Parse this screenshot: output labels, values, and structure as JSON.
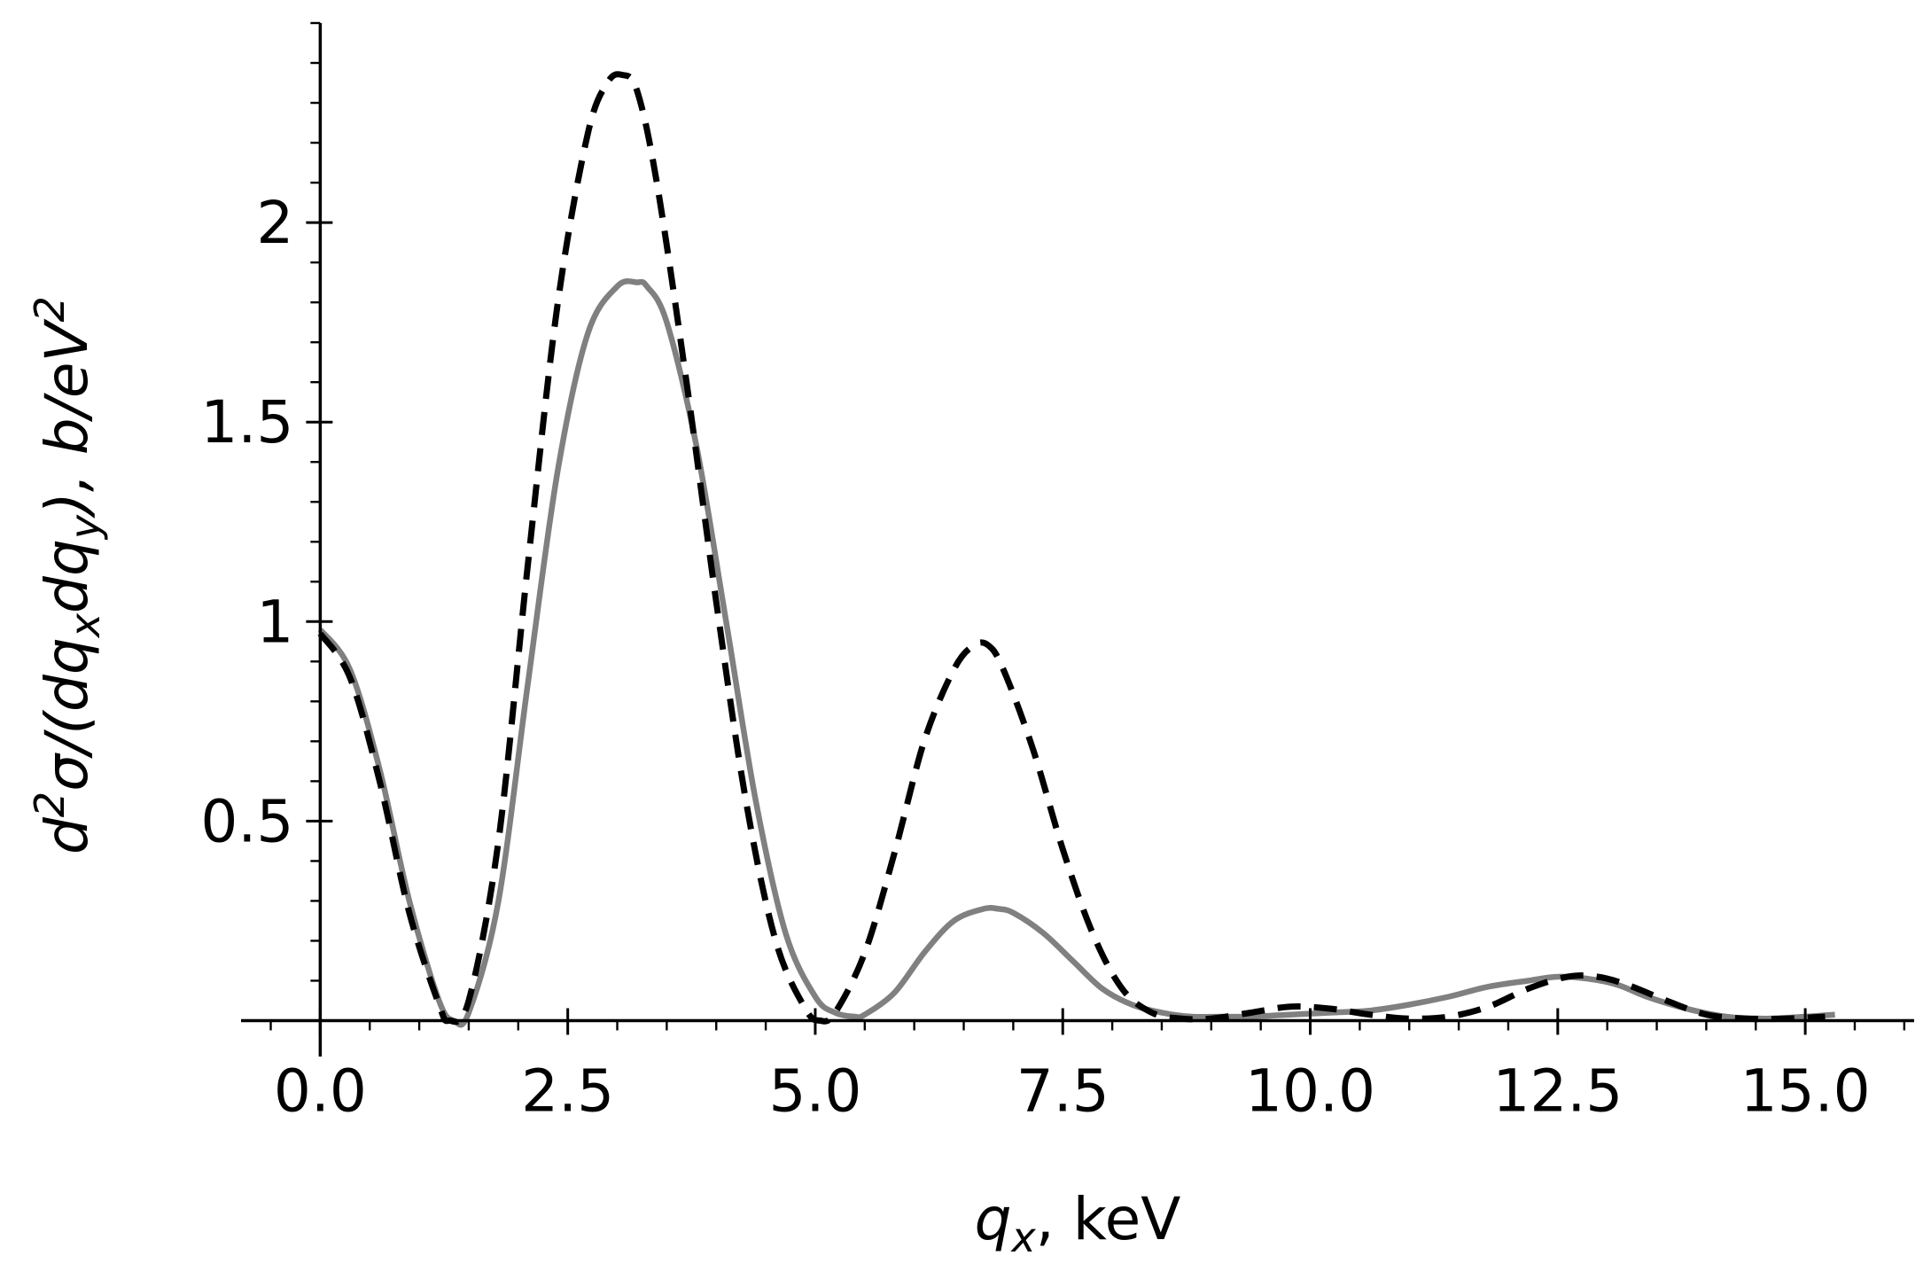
{
  "chart_data": {
    "type": "line",
    "title": "",
    "xlabel": {
      "base": "q",
      "sub": "x",
      "suffix": ", keV"
    },
    "ylabel": {
      "parts": [
        "d",
        "2",
        "σ/(dq",
        "x",
        "dq",
        "y",
        "),  b/eV",
        "2"
      ]
    },
    "xlim": [
      -0.8,
      16.1
    ],
    "ylim": [
      -0.09,
      2.5
    ],
    "x_ticks": [
      {
        "value": 0.0,
        "label": "0.0"
      },
      {
        "value": 2.5,
        "label": "2.5"
      },
      {
        "value": 5.0,
        "label": "5.0"
      },
      {
        "value": 7.5,
        "label": "7.5"
      },
      {
        "value": 10.0,
        "label": "10.0"
      },
      {
        "value": 12.5,
        "label": "12.5"
      },
      {
        "value": 15.0,
        "label": "15.0"
      }
    ],
    "y_ticks": [
      {
        "value": 0.5,
        "label": "0.5"
      },
      {
        "value": 1.0,
        "label": "1"
      },
      {
        "value": 1.5,
        "label": "1.5"
      },
      {
        "value": 2.0,
        "label": "2"
      }
    ],
    "x_minor_step": 0.5,
    "y_minor_step": 0.1,
    "grid": false,
    "legend": "none",
    "series": [
      {
        "style": "solid",
        "color": "#808080",
        "x": [
          0.0,
          0.3,
          0.6,
          0.9,
          1.2,
          1.35,
          1.5,
          1.8,
          2.1,
          2.4,
          2.7,
          3.0,
          3.2,
          3.3,
          3.5,
          3.8,
          4.1,
          4.4,
          4.7,
          5.0,
          5.2,
          5.4,
          5.5,
          5.8,
          6.1,
          6.4,
          6.7,
          6.85,
          7.0,
          7.3,
          7.6,
          7.9,
          8.2,
          8.5,
          8.8,
          9.1,
          9.4,
          9.8,
          10.2,
          10.6,
          11.0,
          11.4,
          11.8,
          12.2,
          12.5,
          12.8,
          13.1,
          13.4,
          13.8,
          14.2,
          14.6,
          15.0,
          15.3
        ],
        "y": [
          0.98,
          0.88,
          0.63,
          0.3,
          0.05,
          0.0,
          0.02,
          0.3,
          0.85,
          1.38,
          1.72,
          1.84,
          1.85,
          1.84,
          1.75,
          1.44,
          1.0,
          0.55,
          0.22,
          0.06,
          0.02,
          0.01,
          0.015,
          0.07,
          0.17,
          0.25,
          0.28,
          0.28,
          0.27,
          0.22,
          0.15,
          0.08,
          0.04,
          0.02,
          0.01,
          0.01,
          0.01,
          0.015,
          0.02,
          0.025,
          0.04,
          0.06,
          0.085,
          0.1,
          0.11,
          0.105,
          0.09,
          0.06,
          0.03,
          0.01,
          0.005,
          0.01,
          0.015
        ]
      },
      {
        "style": "dashed",
        "color": "#000000",
        "x": [
          0.0,
          0.3,
          0.6,
          0.9,
          1.2,
          1.3,
          1.5,
          1.8,
          2.1,
          2.4,
          2.7,
          2.9,
          3.05,
          3.2,
          3.4,
          3.7,
          4.0,
          4.3,
          4.6,
          4.9,
          5.05,
          5.2,
          5.5,
          5.8,
          6.1,
          6.4,
          6.6,
          6.75,
          6.9,
          7.2,
          7.5,
          7.8,
          8.1,
          8.4,
          8.7,
          9.0,
          9.4,
          9.8,
          10.2,
          10.6,
          11.0,
          11.4,
          11.8,
          12.2,
          12.6,
          12.9,
          13.2,
          13.6,
          14.0,
          14.4,
          14.8,
          15.2
        ],
        "y": [
          0.97,
          0.86,
          0.6,
          0.27,
          0.04,
          0.0,
          0.05,
          0.45,
          1.15,
          1.8,
          2.22,
          2.35,
          2.37,
          2.33,
          2.1,
          1.6,
          1.05,
          0.55,
          0.2,
          0.03,
          0.0,
          0.02,
          0.17,
          0.42,
          0.7,
          0.88,
          0.94,
          0.94,
          0.88,
          0.68,
          0.43,
          0.22,
          0.08,
          0.02,
          0.005,
          0.005,
          0.02,
          0.035,
          0.03,
          0.015,
          0.005,
          0.01,
          0.035,
          0.08,
          0.11,
          0.11,
          0.09,
          0.05,
          0.015,
          0.005,
          0.005,
          0.01
        ]
      }
    ]
  }
}
